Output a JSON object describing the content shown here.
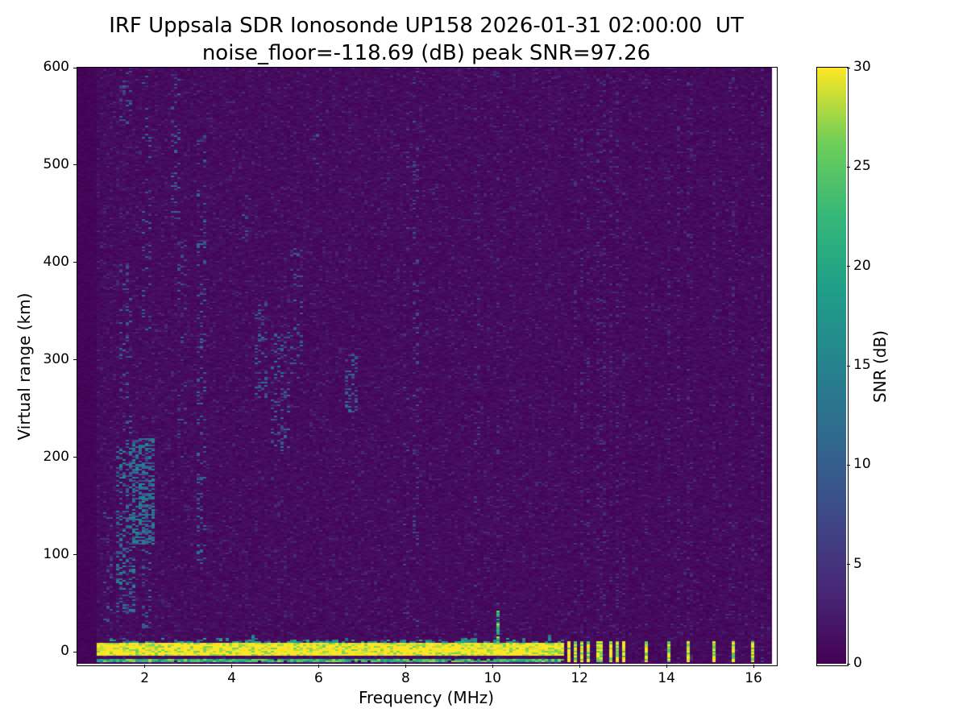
{
  "colors": {
    "background": "#ffffff",
    "text": "#000000",
    "frame": "#000000"
  },
  "chart_data": {
    "type": "heatmap",
    "title": "IRF Uppsala SDR Ionosonde UP158 2026-01-31 02:00:00  UT",
    "subtitle": "noise_floor=-118.69 (dB) peak SNR=97.26",
    "xlabel": "Frequency (MHz)",
    "ylabel": "Virtual range (km)",
    "colorbar_label": "SNR (dB)",
    "colormap": "viridis",
    "xlim": [
      0.45,
      16.5
    ],
    "ylim": [
      -12,
      600
    ],
    "clim": [
      0,
      30
    ],
    "xticks": [
      2,
      4,
      6,
      8,
      10,
      12,
      14,
      16
    ],
    "yticks": [
      0,
      100,
      200,
      300,
      400,
      500,
      600
    ],
    "colorbar_ticks": [
      0,
      5,
      10,
      15,
      20,
      25,
      30
    ],
    "noise_floor_db": -118.69,
    "peak_snr_db": 97.26,
    "data_freq_start": 0.9,
    "data_freq_end": 16.42,
    "ground_echo_band": {
      "freq_range": [
        0.93,
        11.68
      ],
      "range_km": [
        -4,
        9
      ],
      "snr_db": 30
    },
    "sub_band_line": {
      "freq_range": [
        0.93,
        11.68
      ],
      "range_km": [
        -10.5,
        -7.5
      ],
      "snr_db": 20
    },
    "band_bumps": [
      {
        "freq": 4.5,
        "width": 0.12,
        "top_km": 18,
        "snr_db": 16
      },
      {
        "freq": 9.45,
        "width": 0.35,
        "top_km": 14,
        "snr_db": 18
      },
      {
        "freq": 10.15,
        "width": 0.09,
        "top_km": 42,
        "snr_db": 26
      },
      {
        "freq": 11.3,
        "width": 0.12,
        "top_km": 17,
        "snr_db": 16
      }
    ],
    "hf_bursts": {
      "freqs": [
        11.74,
        11.88,
        12.05,
        12.22,
        12.4,
        12.53,
        12.7,
        12.87,
        13.01,
        13.55,
        14.05,
        14.53,
        15.07,
        15.5,
        15.97
      ],
      "width": 0.075,
      "range_km": [
        -11,
        11
      ],
      "snr_db": 30
    },
    "echo_clusters": [
      {
        "freq_range": [
          1.05,
          1.3
        ],
        "range_km": [
          30,
          160
        ],
        "density": 0.14,
        "snr_db": [
          4,
          10
        ]
      },
      {
        "freq_range": [
          1.35,
          1.75
        ],
        "range_km": [
          40,
          215
        ],
        "density": 0.33,
        "snr_db": [
          6,
          16
        ]
      },
      {
        "freq_range": [
          1.45,
          1.72
        ],
        "range_km": [
          215,
          400
        ],
        "density": 0.13,
        "snr_db": [
          5,
          12
        ]
      },
      {
        "freq_range": [
          1.45,
          1.72
        ],
        "range_km": [
          540,
          600
        ],
        "density": 0.2,
        "snr_db": [
          5,
          12
        ]
      },
      {
        "freq_range": [
          1.72,
          2.2
        ],
        "range_km": [
          110,
          220
        ],
        "density": 0.5,
        "snr_db": [
          7,
          16
        ]
      },
      {
        "freq_range": [
          1.95,
          2.15
        ],
        "range_km": [
          20,
          115
        ],
        "density": 0.22,
        "snr_db": [
          5,
          13
        ]
      },
      {
        "freq_range": [
          1.9,
          2.15
        ],
        "range_km": [
          330,
          600
        ],
        "density": 0.09,
        "snr_db": [
          5,
          12
        ]
      },
      {
        "freq_range": [
          2.62,
          2.85
        ],
        "range_km": [
          440,
          600
        ],
        "density": 0.13,
        "snr_db": [
          5,
          12
        ]
      },
      {
        "freq_range": [
          2.75,
          3.0
        ],
        "range_km": [
          200,
          430
        ],
        "density": 0.08,
        "snr_db": [
          4,
          10
        ]
      },
      {
        "freq_range": [
          3.17,
          3.45
        ],
        "range_km": [
          90,
          530
        ],
        "density": 0.15,
        "snr_db": [
          5,
          13
        ]
      },
      {
        "freq_range": [
          4.22,
          4.45
        ],
        "range_km": [
          420,
          470
        ],
        "density": 0.12,
        "snr_db": [
          4,
          10
        ]
      },
      {
        "freq_range": [
          4.55,
          4.85
        ],
        "range_km": [
          260,
          360
        ],
        "density": 0.18,
        "snr_db": [
          5,
          12
        ]
      },
      {
        "freq_range": [
          4.9,
          5.35
        ],
        "range_km": [
          205,
          330
        ],
        "density": 0.2,
        "snr_db": [
          5,
          13
        ]
      },
      {
        "freq_range": [
          5.35,
          5.65
        ],
        "range_km": [
          280,
          420
        ],
        "density": 0.12,
        "snr_db": [
          5,
          12
        ]
      },
      {
        "freq_range": [
          5.88,
          6.08
        ],
        "range_km": [
          500,
          570
        ],
        "density": 0.08,
        "snr_db": [
          4,
          10
        ]
      },
      {
        "freq_range": [
          6.6,
          6.92
        ],
        "range_km": [
          245,
          305
        ],
        "density": 0.26,
        "snr_db": [
          6,
          13
        ]
      },
      {
        "freq_range": [
          7.95,
          8.05
        ],
        "range_km": [
          0,
          600
        ],
        "density": 0.05,
        "snr_db": [
          3,
          8
        ]
      },
      {
        "freq_range": [
          8.18,
          8.3
        ],
        "range_km": [
          0,
          600
        ],
        "density": 0.1,
        "snr_db": [
          4,
          9
        ]
      },
      {
        "freq_range": [
          9.6,
          9.75
        ],
        "range_km": [
          0,
          600
        ],
        "density": 0.05,
        "snr_db": [
          3,
          8
        ]
      }
    ],
    "rfi_columns": {
      "freqs": [
        10.14,
        11.88,
        12.05,
        12.22,
        12.4,
        12.53,
        12.7,
        12.87,
        13.01,
        13.55,
        14.05,
        14.3,
        14.53,
        15.07,
        15.5,
        15.97,
        16.2
      ],
      "width": 0.05,
      "density": 0.12,
      "snr_db": [
        2,
        6
      ]
    }
  }
}
